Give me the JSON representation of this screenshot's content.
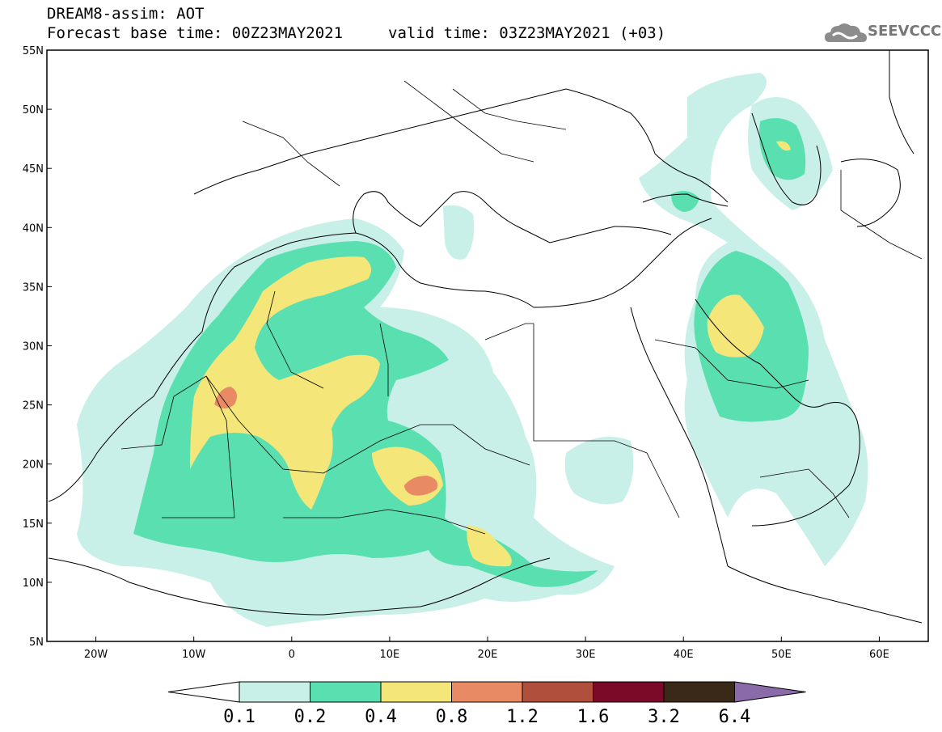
{
  "header": {
    "title_line1": "DREAM8-assim: AOT",
    "title_line2": "Forecast base time: 00Z23MAY2021",
    "valid_time": "valid time: 03Z23MAY2021 (+03)",
    "logo_text": "SEEVCCC"
  },
  "map": {
    "lon_range": [
      -25,
      65
    ],
    "lat_range": [
      5,
      55
    ],
    "lat_ticks": [
      {
        "value": 55,
        "label": "55N"
      },
      {
        "value": 50,
        "label": "50N"
      },
      {
        "value": 45,
        "label": "45N"
      },
      {
        "value": 40,
        "label": "40N"
      },
      {
        "value": 35,
        "label": "35N"
      },
      {
        "value": 30,
        "label": "30N"
      },
      {
        "value": 25,
        "label": "25N"
      },
      {
        "value": 20,
        "label": "20N"
      },
      {
        "value": 15,
        "label": "15N"
      },
      {
        "value": 10,
        "label": "10N"
      },
      {
        "value": 5,
        "label": "5N"
      }
    ],
    "lon_ticks": [
      {
        "value": -20,
        "label": "20W"
      },
      {
        "value": -10,
        "label": "10W"
      },
      {
        "value": 0,
        "label": "0"
      },
      {
        "value": 10,
        "label": "10E"
      },
      {
        "value": 20,
        "label": "20E"
      },
      {
        "value": 30,
        "label": "30E"
      },
      {
        "value": 40,
        "label": "40E"
      },
      {
        "value": 50,
        "label": "50E"
      },
      {
        "value": 60,
        "label": "60E"
      }
    ]
  },
  "colorbar": {
    "colors": [
      "#c8f0e8",
      "#5ae0b0",
      "#f5e67a",
      "#e88b64",
      "#b0503c",
      "#7a0a28",
      "#3a2818"
    ],
    "below_color": "#ffffff",
    "above_color": "#8a6aa8",
    "labels": [
      "0.1",
      "0.2",
      "0.4",
      "0.8",
      "1.2",
      "1.6",
      "3.2",
      "6.4"
    ]
  }
}
